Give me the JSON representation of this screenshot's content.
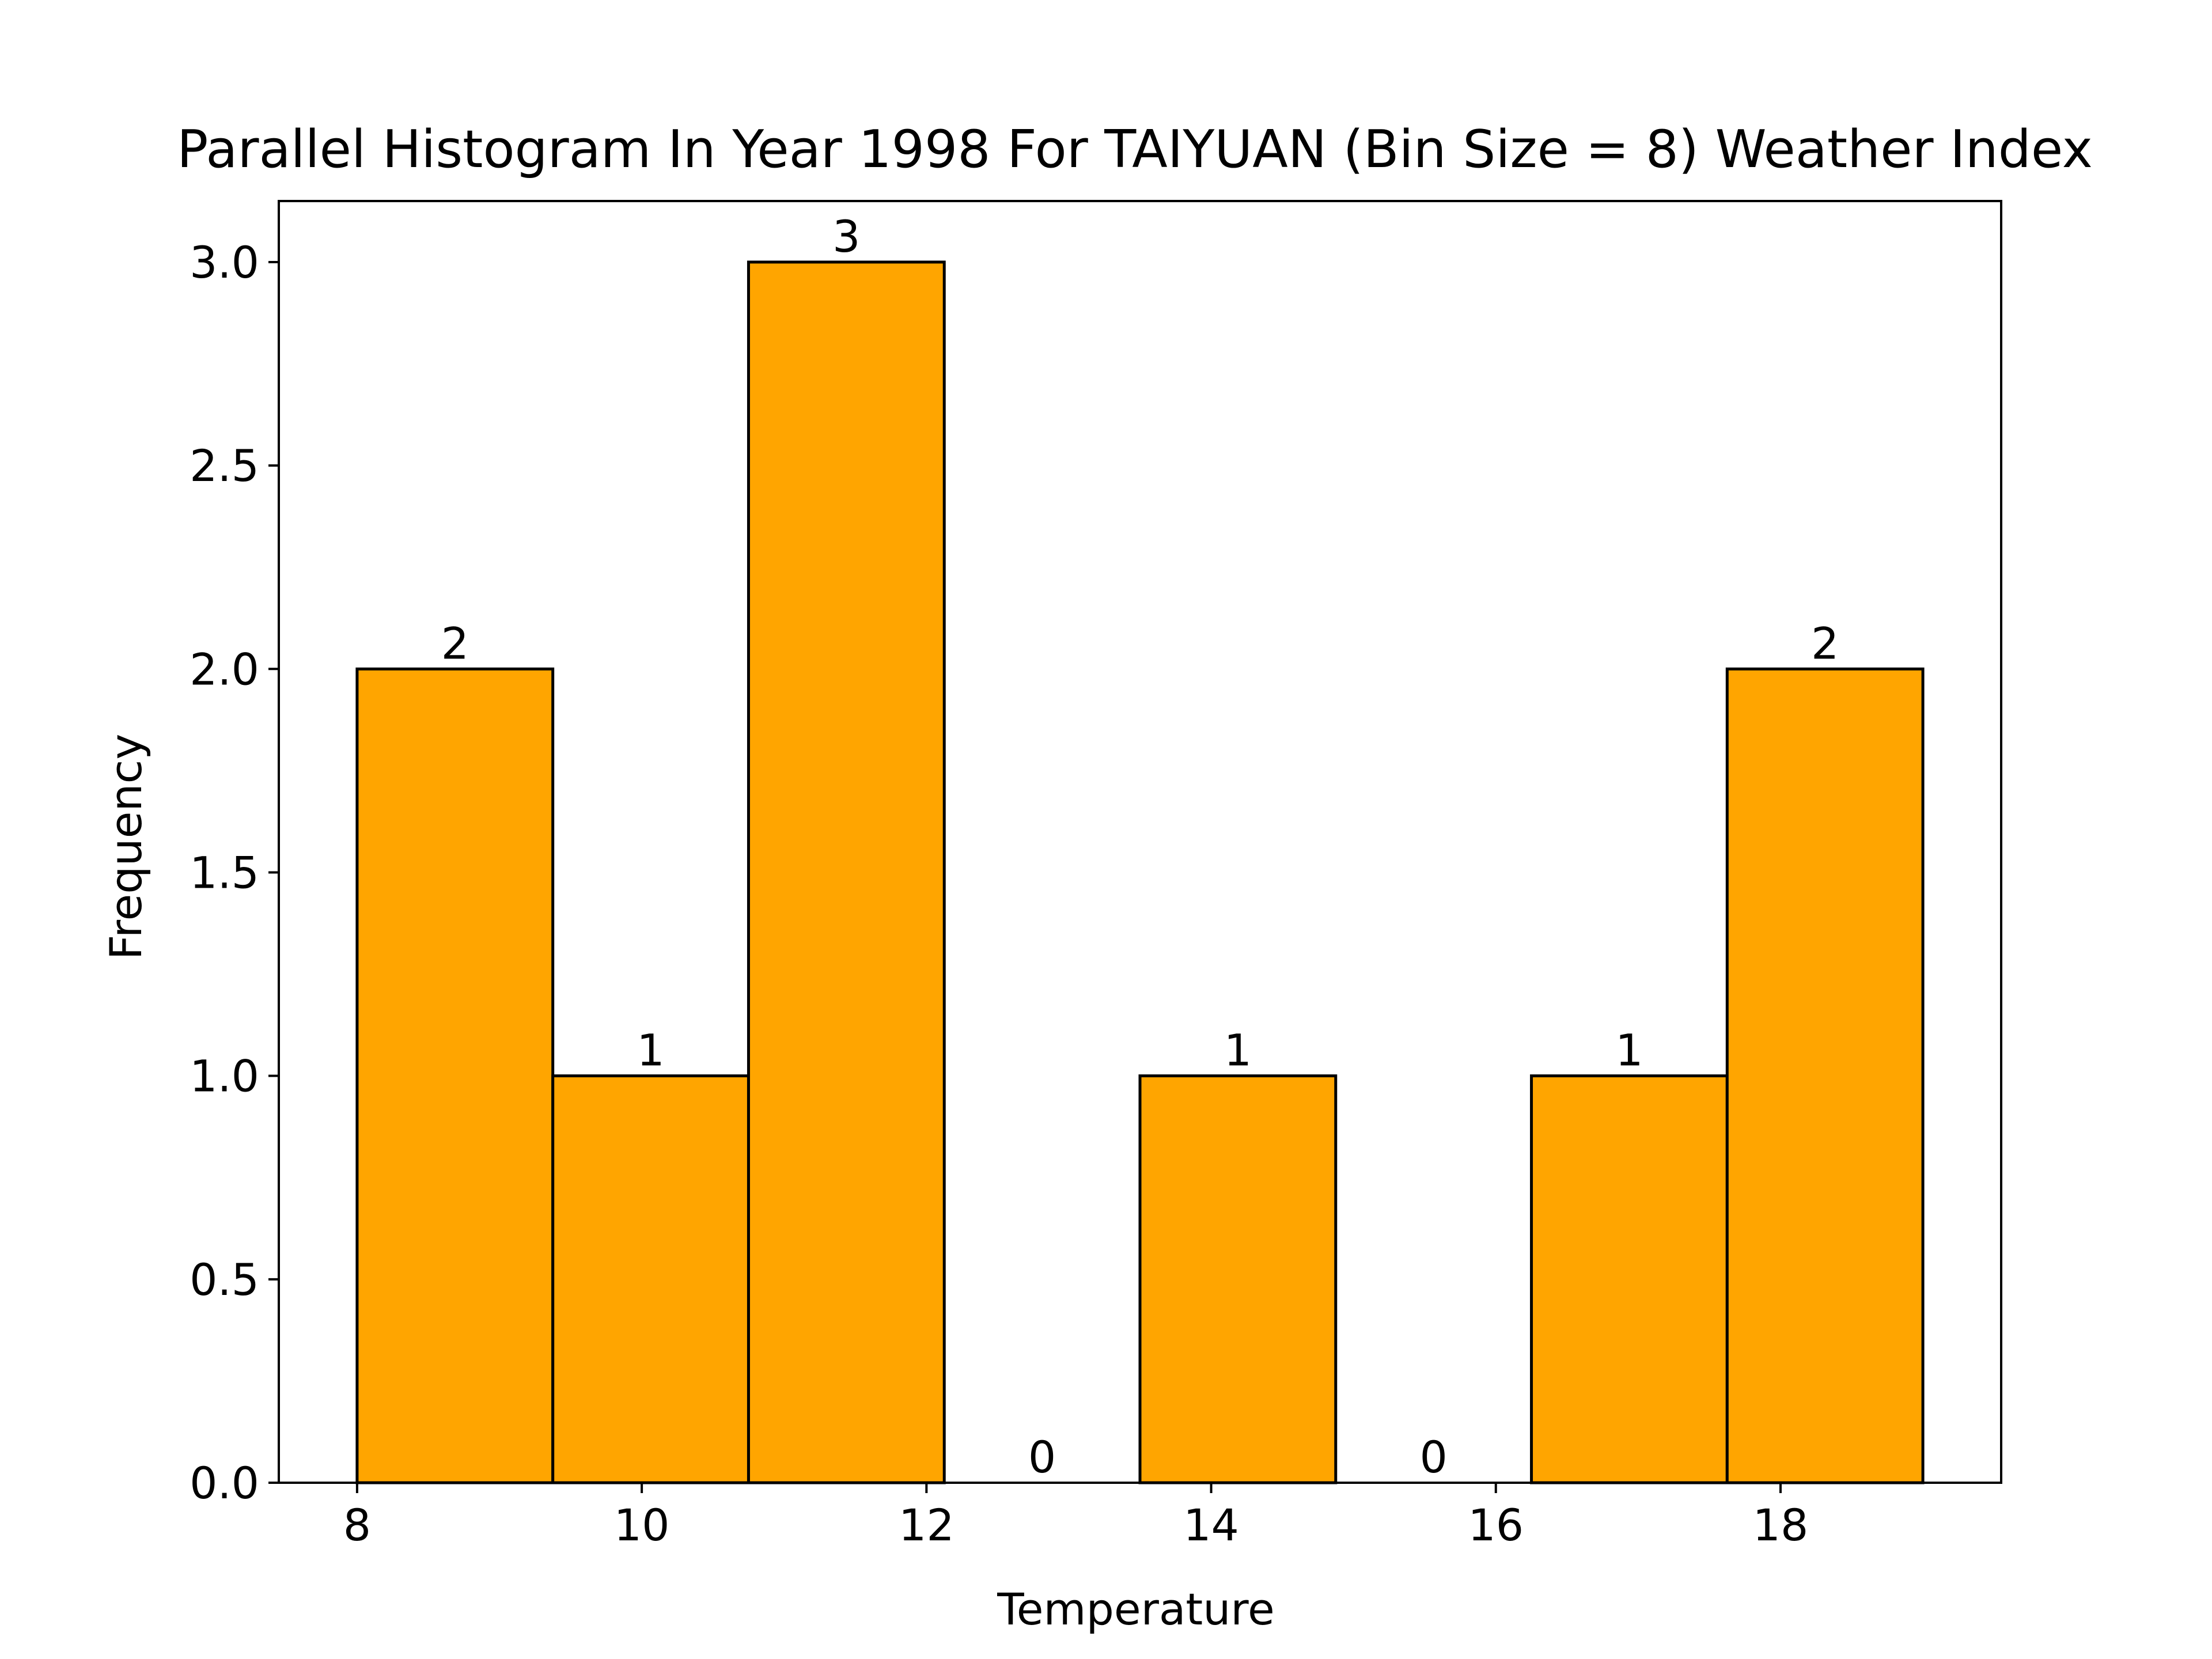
{
  "chart_data": {
    "type": "bar",
    "title": "Parallel Histogram In Year 1998 For TAIYUAN (Bin Size = 8) Weather Index",
    "xlabel": "Temperature",
    "ylabel": "Frequency",
    "bins": [
      [
        8.0,
        9.375
      ],
      [
        9.375,
        10.75
      ],
      [
        10.75,
        12.125
      ],
      [
        12.125,
        13.5
      ],
      [
        13.5,
        14.875
      ],
      [
        14.875,
        16.25
      ],
      [
        16.25,
        17.625
      ],
      [
        17.625,
        19.0
      ]
    ],
    "values": [
      2,
      1,
      3,
      0,
      1,
      0,
      1,
      2
    ],
    "value_labels": [
      "2",
      "1",
      "3",
      "0",
      "1",
      "0",
      "1",
      "2"
    ],
    "xlim": [
      7.45,
      19.55
    ],
    "ylim": [
      0,
      3.15
    ],
    "xticks": [
      8,
      10,
      12,
      14,
      16,
      18
    ],
    "xtick_labels": [
      "8",
      "10",
      "12",
      "14",
      "16",
      "18"
    ],
    "yticks": [
      0.0,
      0.5,
      1.0,
      1.5,
      2.0,
      2.5,
      3.0
    ],
    "ytick_labels": [
      "0.0",
      "0.5",
      "1.0",
      "1.5",
      "2.0",
      "2.5",
      "3.0"
    ],
    "grid": false,
    "bar_color": "#FFA500",
    "edge_color": "#000000"
  }
}
